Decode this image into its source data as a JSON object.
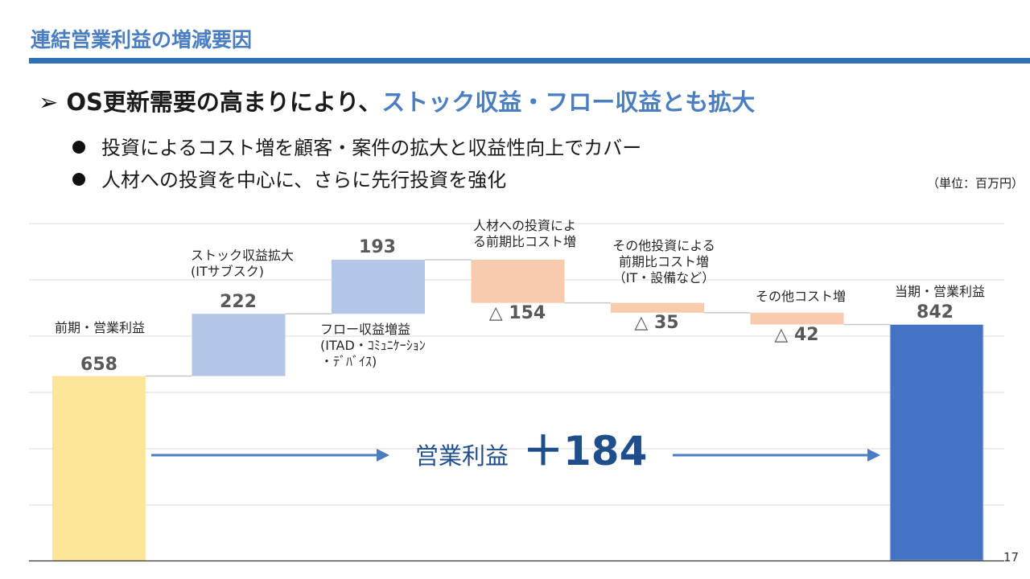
{
  "slide": {
    "title": "連結営業利益の増減要因",
    "headline_prefix": "➢ OS更新需要の高まりにより、",
    "headline_accent": "ストック収益・フロー収益とも拡大",
    "bullets": [
      "投資によるコスト増を顧客・案件の拡大と収益性向上でカバー",
      "人材への投資を中心に、さらに先行投資を強化"
    ],
    "unit": "（単位：百万円）",
    "page_number": "17",
    "accent_color": "#4a7ec0",
    "rule_color": "#2f70b7"
  },
  "chart_data": {
    "type": "waterfall",
    "unit": "百万円",
    "steps": [
      {
        "label_lines": [
          "前期・営業利益"
        ],
        "value": 658,
        "value_text": "658",
        "kind": "total",
        "color": "#fde59a"
      },
      {
        "label_lines": [
          "ストック収益拡大",
          "(ITサブスク)"
        ],
        "value": 222,
        "value_text": "222",
        "kind": "increase",
        "color": "#b3c6e7"
      },
      {
        "label_lines": [
          "フロー収益増益",
          "(ITAD・ｺﾐｭﾆｹｰｼｮﾝ",
          "・ﾃﾞﾊﾞｲｽ)"
        ],
        "value": 193,
        "value_text": "193",
        "kind": "increase",
        "color": "#b3c6e7"
      },
      {
        "label_lines": [
          "人材への投資によ",
          "る前期比コスト増"
        ],
        "value": -154,
        "value_text": "△ 154",
        "kind": "decrease",
        "color": "#f8cbad"
      },
      {
        "label_lines": [
          "その他投資による",
          "前期比コスト増",
          "（IT・設備など）"
        ],
        "value": -35,
        "value_text": "△ 35",
        "kind": "decrease",
        "color": "#f8cbad"
      },
      {
        "label_lines": [
          "その他コスト増"
        ],
        "value": -42,
        "value_text": "△ 42",
        "kind": "decrease",
        "color": "#f8cbad"
      },
      {
        "label_lines": [
          "当期・営業利益"
        ],
        "value": 842,
        "value_text": "842",
        "kind": "total",
        "color": "#4472c4"
      }
    ],
    "callout": {
      "label": "営業利益",
      "value_text": "＋184",
      "color": "#1f4e8c",
      "arrow_color": "#4a7ec0"
    },
    "grid": true
  }
}
